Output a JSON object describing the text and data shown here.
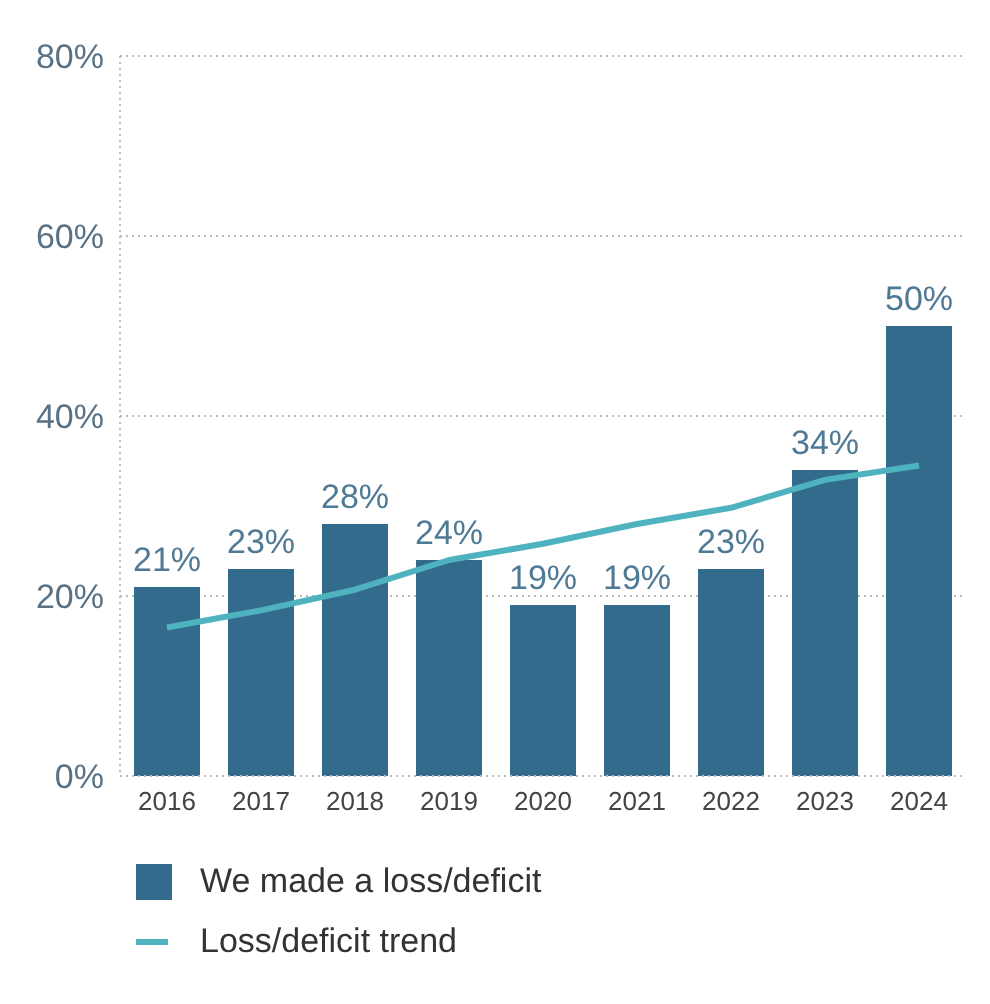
{
  "chart_data": {
    "type": "bar",
    "categories": [
      "2016",
      "2017",
      "2018",
      "2019",
      "2020",
      "2021",
      "2022",
      "2023",
      "2024"
    ],
    "series": [
      {
        "name": "We made a loss/deficit",
        "color": "#336b8c",
        "values": [
          21,
          23,
          28,
          24,
          19,
          19,
          23,
          34,
          50
        ],
        "value_labels": [
          "21%",
          "23%",
          "28%",
          "24%",
          "19%",
          "19%",
          "23%",
          "34%",
          "50%"
        ]
      },
      {
        "name": "Loss/deficit trend",
        "type": "line",
        "color": "#4fb3bf",
        "values": [
          16.5,
          18.4,
          20.7,
          24,
          25.8,
          28,
          29.8,
          32.9,
          34.5
        ]
      }
    ],
    "ylim": [
      0,
      80
    ],
    "yticks": [
      {
        "value": 0,
        "label": "0%"
      },
      {
        "value": 20,
        "label": "20%"
      },
      {
        "value": 40,
        "label": "40%"
      },
      {
        "value": 60,
        "label": "60%"
      },
      {
        "value": 80,
        "label": "80%"
      }
    ],
    "grid": "y",
    "legend": "bottom",
    "marker": "none",
    "line_style": "solid"
  }
}
